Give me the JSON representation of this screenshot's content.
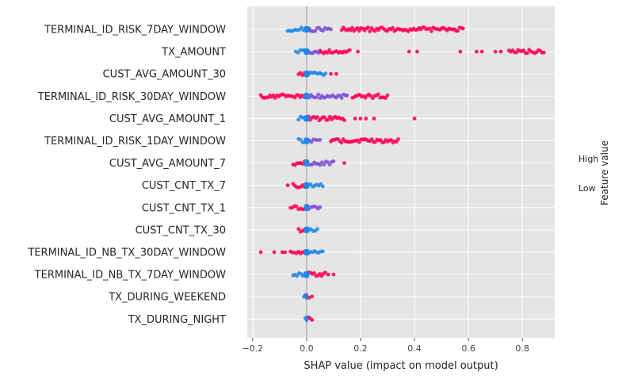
{
  "chart_data": {
    "type": "scatter",
    "subtype": "shap-beeswarm",
    "xlabel": "SHAP value (impact on model output)",
    "xlim": [
      -0.22,
      0.92
    ],
    "xticks": [
      -0.2,
      0.0,
      0.2,
      0.4,
      0.6,
      0.8
    ],
    "xtick_labels": [
      "−0.2",
      "0.0",
      "0.2",
      "0.4",
      "0.6",
      "0.8"
    ],
    "grid": true,
    "zero_line": true,
    "colorbar": {
      "title": "Feature value",
      "high_label": "High",
      "low_label": "Low",
      "colors": {
        "low": "#1e88e5",
        "mid": "#7c4dd6",
        "high": "#ff0052"
      },
      "placement": "right"
    },
    "features": [
      {
        "name": "TERMINAL_ID_RISK_7DAY_WINDOW",
        "min": -0.07,
        "max": 0.58,
        "core": [
          -0.01,
          0.01
        ],
        "segments": [
          {
            "from": -0.07,
            "to": 0.01,
            "value": "low"
          },
          {
            "from": 0.01,
            "to": 0.09,
            "value": "mid"
          },
          {
            "from": 0.13,
            "to": 0.58,
            "value": "high"
          }
        ]
      },
      {
        "name": "TX_AMOUNT",
        "min": -0.04,
        "max": 0.88,
        "core": [
          -0.01,
          0.01
        ],
        "segments": [
          {
            "from": -0.04,
            "to": 0.0,
            "value": "low"
          },
          {
            "from": 0.0,
            "to": 0.05,
            "value": "mid"
          },
          {
            "from": 0.05,
            "to": 0.16,
            "value": "high"
          },
          {
            "from": 0.75,
            "to": 0.88,
            "value": "high"
          }
        ],
        "outliers": [
          0.19,
          0.38,
          0.41,
          0.57,
          0.63,
          0.65,
          0.7,
          0.72
        ]
      },
      {
        "name": "CUST_AVG_AMOUNT_30",
        "min": -0.03,
        "max": 0.11,
        "core": [
          -0.01,
          0.01
        ],
        "segments": [
          {
            "from": -0.03,
            "to": 0.0,
            "value": "high"
          },
          {
            "from": 0.0,
            "to": 0.07,
            "value": "low"
          }
        ],
        "outliers": [
          0.09,
          0.11
        ]
      },
      {
        "name": "TERMINAL_ID_RISK_30DAY_WINDOW",
        "min": -0.17,
        "max": 0.3,
        "core": [
          -0.01,
          0.01
        ],
        "segments": [
          {
            "from": -0.17,
            "to": -0.01,
            "value": "high"
          },
          {
            "from": -0.01,
            "to": 0.15,
            "value": "mid"
          },
          {
            "from": 0.17,
            "to": 0.3,
            "value": "high"
          }
        ]
      },
      {
        "name": "CUST_AVG_AMOUNT_1",
        "min": -0.03,
        "max": 0.4,
        "core": [
          -0.01,
          0.01
        ],
        "segments": [
          {
            "from": -0.03,
            "to": 0.0,
            "value": "low"
          },
          {
            "from": 0.0,
            "to": 0.14,
            "value": "high"
          }
        ],
        "outliers": [
          0.18,
          0.2,
          0.22,
          0.25,
          0.4
        ]
      },
      {
        "name": "TERMINAL_ID_RISK_1DAY_WINDOW",
        "min": -0.03,
        "max": 0.34,
        "core": [
          -0.01,
          0.01
        ],
        "segments": [
          {
            "from": -0.03,
            "to": 0.01,
            "value": "low"
          },
          {
            "from": 0.01,
            "to": 0.05,
            "value": "mid"
          },
          {
            "from": 0.09,
            "to": 0.34,
            "value": "high"
          }
        ]
      },
      {
        "name": "CUST_AVG_AMOUNT_7",
        "min": -0.05,
        "max": 0.14,
        "core": [
          -0.01,
          0.01
        ],
        "segments": [
          {
            "from": -0.05,
            "to": 0.0,
            "value": "high"
          },
          {
            "from": 0.0,
            "to": 0.1,
            "value": "mid"
          }
        ],
        "outliers": [
          0.14
        ]
      },
      {
        "name": "CUST_CNT_TX_7",
        "min": -0.07,
        "max": 0.06,
        "core": [
          -0.01,
          0.01
        ],
        "segments": [
          {
            "from": -0.05,
            "to": 0.0,
            "value": "high"
          },
          {
            "from": 0.0,
            "to": 0.06,
            "value": "low"
          }
        ],
        "outliers": [
          -0.07
        ]
      },
      {
        "name": "CUST_CNT_TX_1",
        "min": -0.06,
        "max": 0.05,
        "core": [
          -0.01,
          0.01
        ],
        "segments": [
          {
            "from": -0.06,
            "to": 0.0,
            "value": "high"
          },
          {
            "from": 0.0,
            "to": 0.05,
            "value": "mid"
          }
        ]
      },
      {
        "name": "CUST_CNT_TX_30",
        "min": -0.03,
        "max": 0.04,
        "core": [
          -0.01,
          0.01
        ],
        "segments": [
          {
            "from": -0.03,
            "to": 0.0,
            "value": "high"
          },
          {
            "from": 0.0,
            "to": 0.04,
            "value": "low"
          }
        ]
      },
      {
        "name": "TERMINAL_ID_NB_TX_30DAY_WINDOW",
        "min": -0.17,
        "max": 0.06,
        "core": [
          -0.01,
          0.01
        ],
        "segments": [
          {
            "from": -0.06,
            "to": 0.0,
            "value": "high"
          },
          {
            "from": 0.0,
            "to": 0.06,
            "value": "low"
          }
        ],
        "outliers": [
          -0.17,
          -0.12,
          -0.09,
          -0.08
        ]
      },
      {
        "name": "TERMINAL_ID_NB_TX_7DAY_WINDOW",
        "min": -0.05,
        "max": 0.1,
        "core": [
          -0.01,
          0.01
        ],
        "segments": [
          {
            "from": -0.05,
            "to": 0.0,
            "value": "low"
          },
          {
            "from": 0.0,
            "to": 0.07,
            "value": "high"
          }
        ],
        "outliers": [
          0.08,
          0.1
        ]
      },
      {
        "name": "TX_DURING_WEEKEND",
        "min": -0.01,
        "max": 0.02,
        "core": [
          -0.005,
          0.005
        ],
        "segments": [
          {
            "from": -0.01,
            "to": 0.0,
            "value": "low"
          },
          {
            "from": 0.0,
            "to": 0.02,
            "value": "high"
          }
        ]
      },
      {
        "name": "TX_DURING_NIGHT",
        "min": -0.005,
        "max": 0.02,
        "core": [
          -0.005,
          0.005
        ],
        "segments": [
          {
            "from": -0.005,
            "to": 0.005,
            "value": "low"
          },
          {
            "from": 0.005,
            "to": 0.02,
            "value": "high"
          }
        ]
      }
    ]
  }
}
